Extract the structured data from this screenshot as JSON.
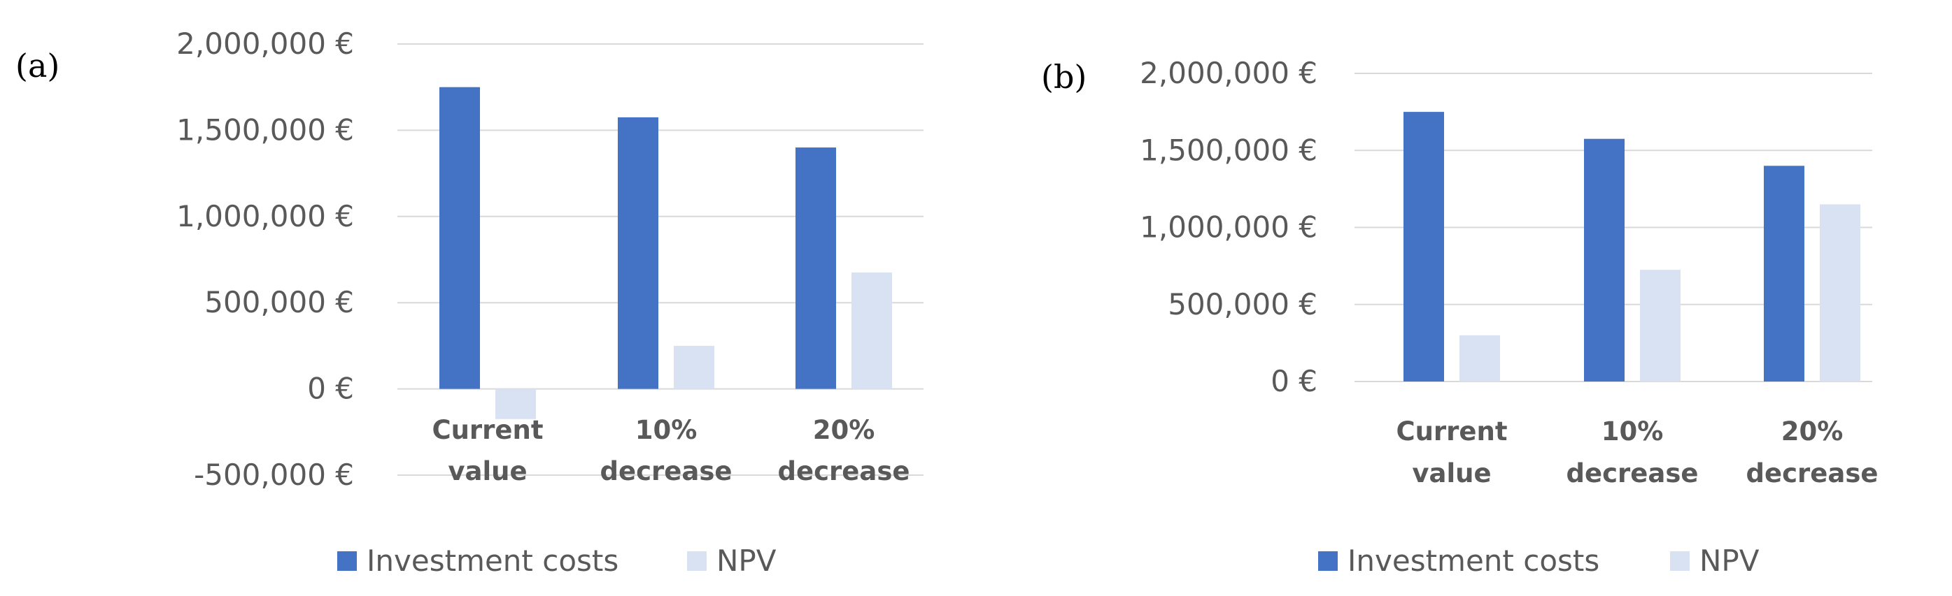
{
  "chart_data": [
    {
      "panel_label": "(a)",
      "type": "bar",
      "categories": [
        "Current value",
        "10% decrease",
        "20% decrease"
      ],
      "series": [
        {
          "name": "Investment costs",
          "values": [
            1750000,
            1575000,
            1400000
          ],
          "color": "#4472c4"
        },
        {
          "name": "NPV",
          "values": [
            -175000,
            250000,
            675000
          ],
          "color": "#d9e2f3"
        }
      ],
      "ylim": [
        -500000,
        2000000
      ],
      "yticks": [
        -500000,
        0,
        500000,
        1000000,
        1500000,
        2000000
      ],
      "ytick_labels": [
        "-500,000 €",
        "0 €",
        "500,000 €",
        "1,000,000 €",
        "1,500,000 €",
        "2,000,000 €"
      ],
      "grid": true,
      "legend_position": "bottom"
    },
    {
      "panel_label": "(b)",
      "type": "bar",
      "categories": [
        "Current value",
        "10% decrease",
        "20% decrease"
      ],
      "series": [
        {
          "name": "Investment costs",
          "values": [
            1750000,
            1575000,
            1400000
          ],
          "color": "#4472c4"
        },
        {
          "name": "NPV",
          "values": [
            300000,
            725000,
            1150000
          ],
          "color": "#d9e2f3"
        }
      ],
      "ylim": [
        0,
        2000000
      ],
      "yticks": [
        0,
        500000,
        1000000,
        1500000,
        2000000
      ],
      "ytick_labels": [
        "0 €",
        "500,000 €",
        "1,000,000 €",
        "1,500,000 €",
        "2,000,000 €"
      ],
      "grid": true,
      "legend_position": "bottom"
    }
  ]
}
